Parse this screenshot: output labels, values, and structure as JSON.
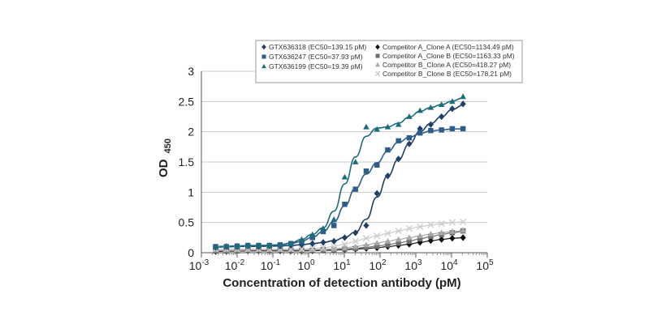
{
  "chart_data": {
    "type": "scatter",
    "title": "",
    "xlabel": "Concentration of detection antibody (pM)",
    "ylabel_main": "OD",
    "ylabel_sub": "450",
    "xscale": "log",
    "xlim": [
      0.001,
      100000
    ],
    "ylim": [
      0,
      3
    ],
    "x_ticks": [
      {
        "base": "10",
        "exp": "-3"
      },
      {
        "base": "10",
        "exp": "-2"
      },
      {
        "base": "10",
        "exp": "-1"
      },
      {
        "base": "10",
        "exp": "0"
      },
      {
        "base": "10",
        "exp": "1"
      },
      {
        "base": "10",
        "exp": "2"
      },
      {
        "base": "10",
        "exp": "3"
      },
      {
        "base": "10",
        "exp": "4"
      },
      {
        "base": "10",
        "exp": "5"
      }
    ],
    "y_ticks": [
      "0",
      "0.5",
      "1",
      "1.5",
      "2",
      "2.5",
      "3"
    ],
    "grid": "horizontal",
    "legend_position": "top",
    "x": [
      0.0025,
      0.005,
      0.01,
      0.02,
      0.04,
      0.08,
      0.16,
      0.32,
      0.64,
      1.28,
      2.56,
      5.12,
      10.24,
      20.48,
      40.96,
      81.92,
      163.84,
      327.68,
      655.36,
      1310.72,
      2621.44,
      5242.88,
      10485.76,
      20971.52
    ],
    "series": [
      {
        "name": "GTX636318 (EC50=139.15 pM)",
        "marker": "diamond",
        "color": "#1f3f66",
        "values": [
          0.09,
          0.1,
          0.1,
          0.11,
          0.1,
          0.11,
          0.11,
          0.12,
          0.13,
          0.15,
          0.17,
          0.19,
          0.25,
          0.33,
          0.45,
          0.98,
          1.27,
          1.55,
          1.8,
          2.05,
          2.12,
          2.25,
          2.38,
          2.46
        ],
        "fit": true
      },
      {
        "name": "GTX636247 (EC50=37.93 pM)",
        "marker": "square",
        "color": "#2e5d8a",
        "values": [
          0.1,
          0.1,
          0.11,
          0.12,
          0.12,
          0.12,
          0.13,
          0.15,
          0.18,
          0.25,
          0.35,
          0.45,
          0.8,
          1.05,
          1.35,
          1.45,
          1.7,
          1.85,
          1.9,
          1.98,
          2.02,
          2.03,
          2.05,
          2.05
        ],
        "fit": true
      },
      {
        "name": "GTX636199 (EC50=19.39 pM)",
        "marker": "triangle",
        "color": "#1c6d7b",
        "values": [
          0.1,
          0.11,
          0.11,
          0.12,
          0.12,
          0.12,
          0.13,
          0.15,
          0.22,
          0.3,
          0.4,
          0.55,
          1.25,
          1.5,
          2.08,
          2.04,
          2.08,
          2.12,
          2.25,
          2.35,
          2.4,
          2.45,
          2.5,
          2.58
        ],
        "fit": true
      },
      {
        "name": "Competitor A_Clone A (EC50=1134.49 pM)",
        "marker": "diamond",
        "color": "#111111",
        "values": [
          0.02,
          0.02,
          0.03,
          0.03,
          0.03,
          0.03,
          0.03,
          0.03,
          0.03,
          0.03,
          0.04,
          0.04,
          0.05,
          0.06,
          0.07,
          0.08,
          0.1,
          0.12,
          0.14,
          0.17,
          0.2,
          0.22,
          0.24,
          0.25
        ],
        "fit": false
      },
      {
        "name": "Competitor A_Clone B (EC50=1163.33 pM)",
        "marker": "square",
        "color": "#707070",
        "values": [
          0.03,
          0.03,
          0.03,
          0.04,
          0.04,
          0.04,
          0.04,
          0.04,
          0.04,
          0.04,
          0.05,
          0.05,
          0.06,
          0.07,
          0.09,
          0.11,
          0.13,
          0.16,
          0.19,
          0.23,
          0.27,
          0.3,
          0.33,
          0.36
        ],
        "fit": false
      },
      {
        "name": "Competitor B_Clone A (EC50=418.27 pM)",
        "marker": "triangle",
        "color": "#a8a8a8",
        "values": [
          0.04,
          0.04,
          0.04,
          0.05,
          0.05,
          0.05,
          0.05,
          0.05,
          0.05,
          0.05,
          0.06,
          0.06,
          0.08,
          0.1,
          0.13,
          0.16,
          0.19,
          0.22,
          0.25,
          0.28,
          0.31,
          0.33,
          0.35,
          0.37
        ],
        "fit": false
      },
      {
        "name": "Competitor B_Clone B (EC50=178.21 pM)",
        "marker": "x",
        "color": "#cccccc",
        "values": [
          0.06,
          0.06,
          0.06,
          0.06,
          0.06,
          0.06,
          0.06,
          0.06,
          0.06,
          0.07,
          0.08,
          0.1,
          0.14,
          0.19,
          0.24,
          0.28,
          0.32,
          0.36,
          0.4,
          0.43,
          0.46,
          0.48,
          0.5,
          0.51
        ],
        "fit": false
      }
    ]
  }
}
